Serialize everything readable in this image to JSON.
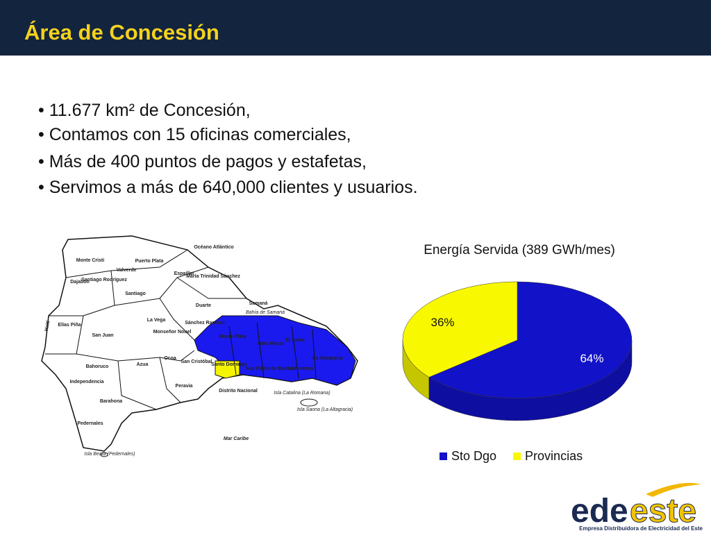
{
  "header": {
    "title": "Área de Concesión"
  },
  "bullets": [
    "• 11.677 km² de Concesión,",
    "• Contamos con 15 oficinas comerciales,",
    "• Más de 400 puntos de pagos y estafetas,",
    "• Servimos a más de 640,000 clientes y usuarios."
  ],
  "map": {
    "labels": [
      "Océano Atlántico",
      "Monte Cristi",
      "Puerto Plata",
      "Valverde",
      "Espaillat",
      "María Trinidad Sánchez",
      "Dajabón",
      "Santiago Rodríguez",
      "Santiago",
      "Samaná",
      "Duarte",
      "Bahía de Samaná",
      "Haití",
      "Elías Piña",
      "La Vega",
      "Sánchez Ramírez",
      "Monte Plata",
      "Hato Mayor",
      "El Seibo",
      "La Altagracia",
      "San Juan",
      "Monseñor Nouel",
      "San Pedro de Macorís",
      "La Romana",
      "Bahoruco",
      "Azua",
      "Ocoa",
      "San Cristóbal",
      "Santo Domingo",
      "Distrito Nacional",
      "Independencia",
      "Peravia",
      "Isla Catalina (La Romana)",
      "Isla Saona (La Altagracia)",
      "Barahona",
      "Pedernales",
      "Mar Caribe",
      "Isla Beata (Pedernales)"
    ]
  },
  "chart_data": {
    "type": "pie",
    "title": "Energía Servida (389 GWh/mes)",
    "categories": [
      "Sto Dgo",
      "Provincias"
    ],
    "values": [
      64,
      36
    ],
    "value_labels": [
      "64%",
      "36%"
    ],
    "colors": [
      "#1212c8",
      "#f8f800"
    ],
    "legend": "bottom"
  },
  "logo": {
    "name_parts": [
      "ede",
      "este"
    ],
    "tagline": "Empresa Distribuidora de Electricidad del Este"
  }
}
